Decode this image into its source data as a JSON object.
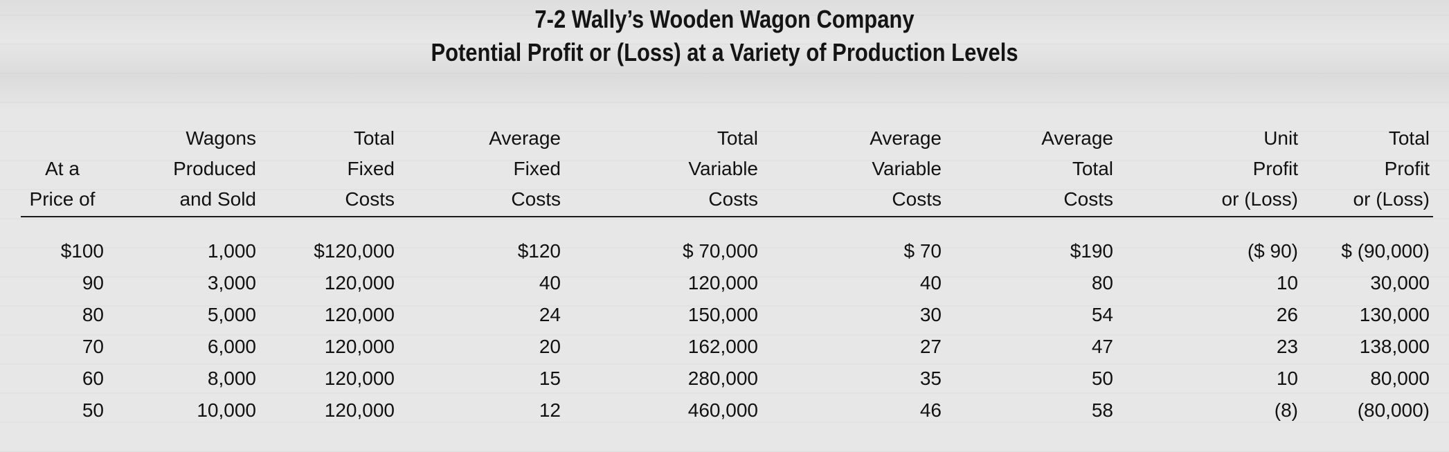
{
  "title": {
    "line1": "7-2 Wally’s Wooden Wagon Company",
    "line2": "Potential Profit or (Loss) at a Variety of Production Levels"
  },
  "columns": [
    [
      "",
      "At a",
      "Price of"
    ],
    [
      "Wagons",
      "Produced",
      "and Sold"
    ],
    [
      "Total",
      "Fixed",
      "Costs"
    ],
    [
      "Average",
      "Fixed",
      "Costs"
    ],
    [
      "Total",
      "Variable",
      "Costs"
    ],
    [
      "Average",
      "Variable",
      "Costs"
    ],
    [
      "Average",
      "Total",
      "Costs"
    ],
    [
      "Unit",
      "Profit",
      "or (Loss)"
    ],
    [
      "Total",
      "Profit",
      "or (Loss)"
    ]
  ],
  "rows": [
    [
      "$100",
      "1,000",
      "$120,000",
      "$120",
      "$ 70,000",
      "$ 70",
      "$190",
      "($ 90)",
      "$ (90,000)"
    ],
    [
      "90",
      "3,000",
      "120,000",
      "40",
      "120,000",
      "40",
      "80",
      "10",
      "30,000"
    ],
    [
      "80",
      "5,000",
      "120,000",
      "24",
      "150,000",
      "30",
      "54",
      "26",
      "130,000"
    ],
    [
      "70",
      "6,000",
      "120,000",
      "20",
      "162,000",
      "27",
      "47",
      "23",
      "138,000"
    ],
    [
      "60",
      "8,000",
      "120,000",
      "15",
      "280,000",
      "35",
      "50",
      "10",
      "80,000"
    ],
    [
      "50",
      "10,000",
      "120,000",
      "12",
      "460,000",
      "46",
      "58",
      "(8)",
      "(80,000)"
    ]
  ]
}
